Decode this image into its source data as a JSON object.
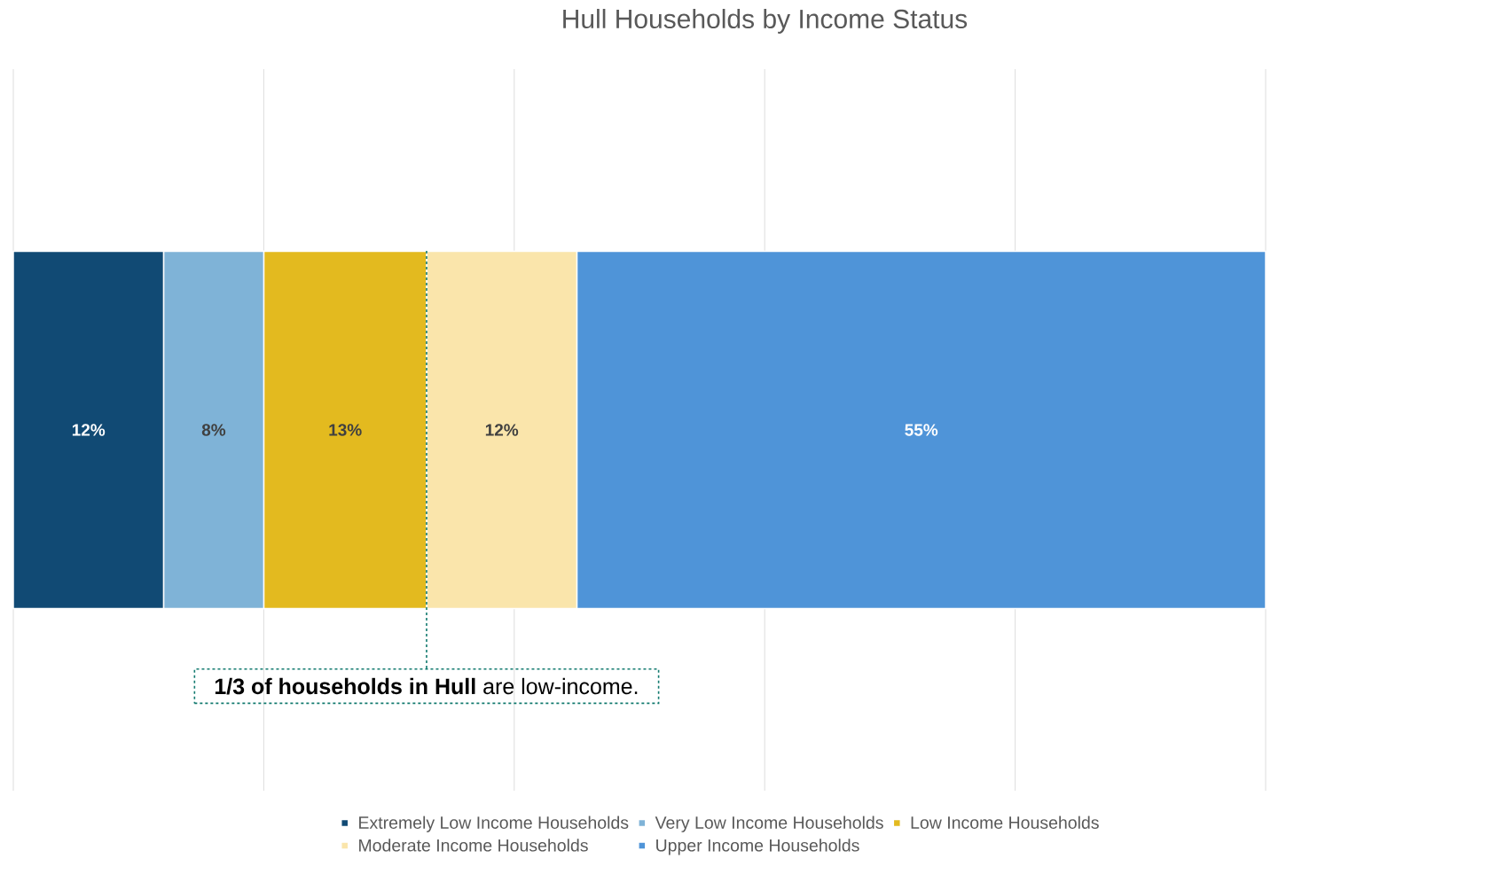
{
  "chart_data": {
    "type": "bar",
    "orientation": "horizontal",
    "stacked": true,
    "title": "Hull Households by Income Status",
    "categories": [
      null
    ],
    "series": [
      {
        "name": "Extremely Low Income Households",
        "color": "#114a74",
        "values": [
          12
        ],
        "value_labels": [
          "12%"
        ]
      },
      {
        "name": "Very Low Income Households",
        "color": "#7fb3d7",
        "values": [
          8
        ],
        "value_labels": [
          "8%"
        ]
      },
      {
        "name": "Low Income Households",
        "color": "#e3ba1f",
        "values": [
          13
        ],
        "value_labels": [
          "13%"
        ]
      },
      {
        "name": "Moderate Income Households",
        "color": "#fae5ab",
        "values": [
          12
        ],
        "value_labels": [
          "12%"
        ]
      },
      {
        "name": "Upper Income Households",
        "color": "#4f94d8",
        "values": [
          55
        ],
        "value_labels": [
          "55%"
        ]
      }
    ],
    "xlim": [
      0,
      100
    ],
    "xticks": [
      {
        "value": 0,
        "label": null
      },
      {
        "value": 20,
        "label": null
      },
      {
        "value": 40,
        "label": null
      },
      {
        "value": 60,
        "label": null
      },
      {
        "value": 80,
        "label": null
      },
      {
        "value": 100,
        "label": null
      }
    ],
    "grid": "x",
    "tick_labels": false,
    "legend": "bottom",
    "annotations": [
      {
        "text": "**1/3 of households in Hull** are low-income.",
        "x": 33
      }
    ]
  }
}
